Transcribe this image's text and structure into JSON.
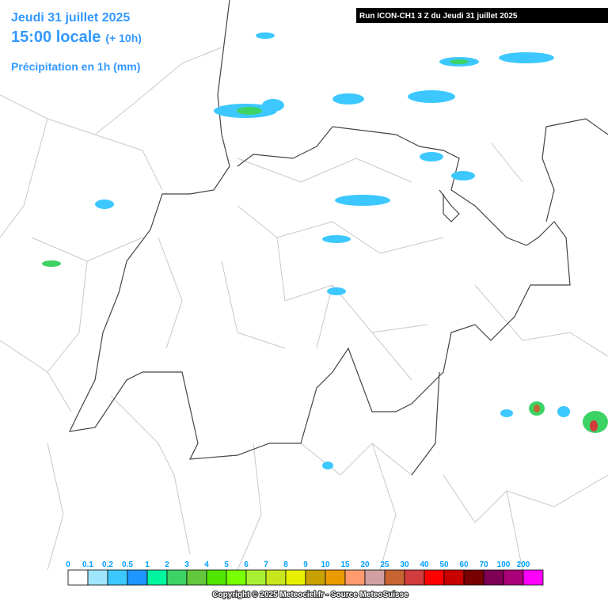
{
  "header": {
    "date": "Jeudi 31 juillet 2025",
    "time": "15:00 locale",
    "lead": "(+ 10h)",
    "parameter": "Précipitation en 1h (mm)",
    "run": "Run ICON-CH1 3 Z du Jeudi 31 juillet 2025"
  },
  "legend": {
    "labels": [
      "0",
      "0.1",
      "0.2",
      "0.5",
      "1",
      "2",
      "3",
      "4",
      "5",
      "6",
      "7",
      "8",
      "9",
      "10",
      "15",
      "20",
      "25",
      "30",
      "40",
      "50",
      "60",
      "70",
      "100",
      "200"
    ],
    "colors": [
      "#ffffff",
      "#a0e6ff",
      "#3cc8ff",
      "#1e96ff",
      "#00f5a0",
      "#3cd264",
      "#64c83c",
      "#50e600",
      "#78ff00",
      "#aaf032",
      "#c8e61e",
      "#e6f000",
      "#c8a000",
      "#eb9b00",
      "#ff9b6e",
      "#d2a0a0",
      "#c86432",
      "#d23c3c",
      "#ff0000",
      "#c80000",
      "#780000",
      "#7d0055",
      "#aa0078",
      "#ff00ff"
    ]
  },
  "footer": {
    "copyright": "Copyright © 2025 Meteociel.fr - Source MeteoSuisse"
  }
}
